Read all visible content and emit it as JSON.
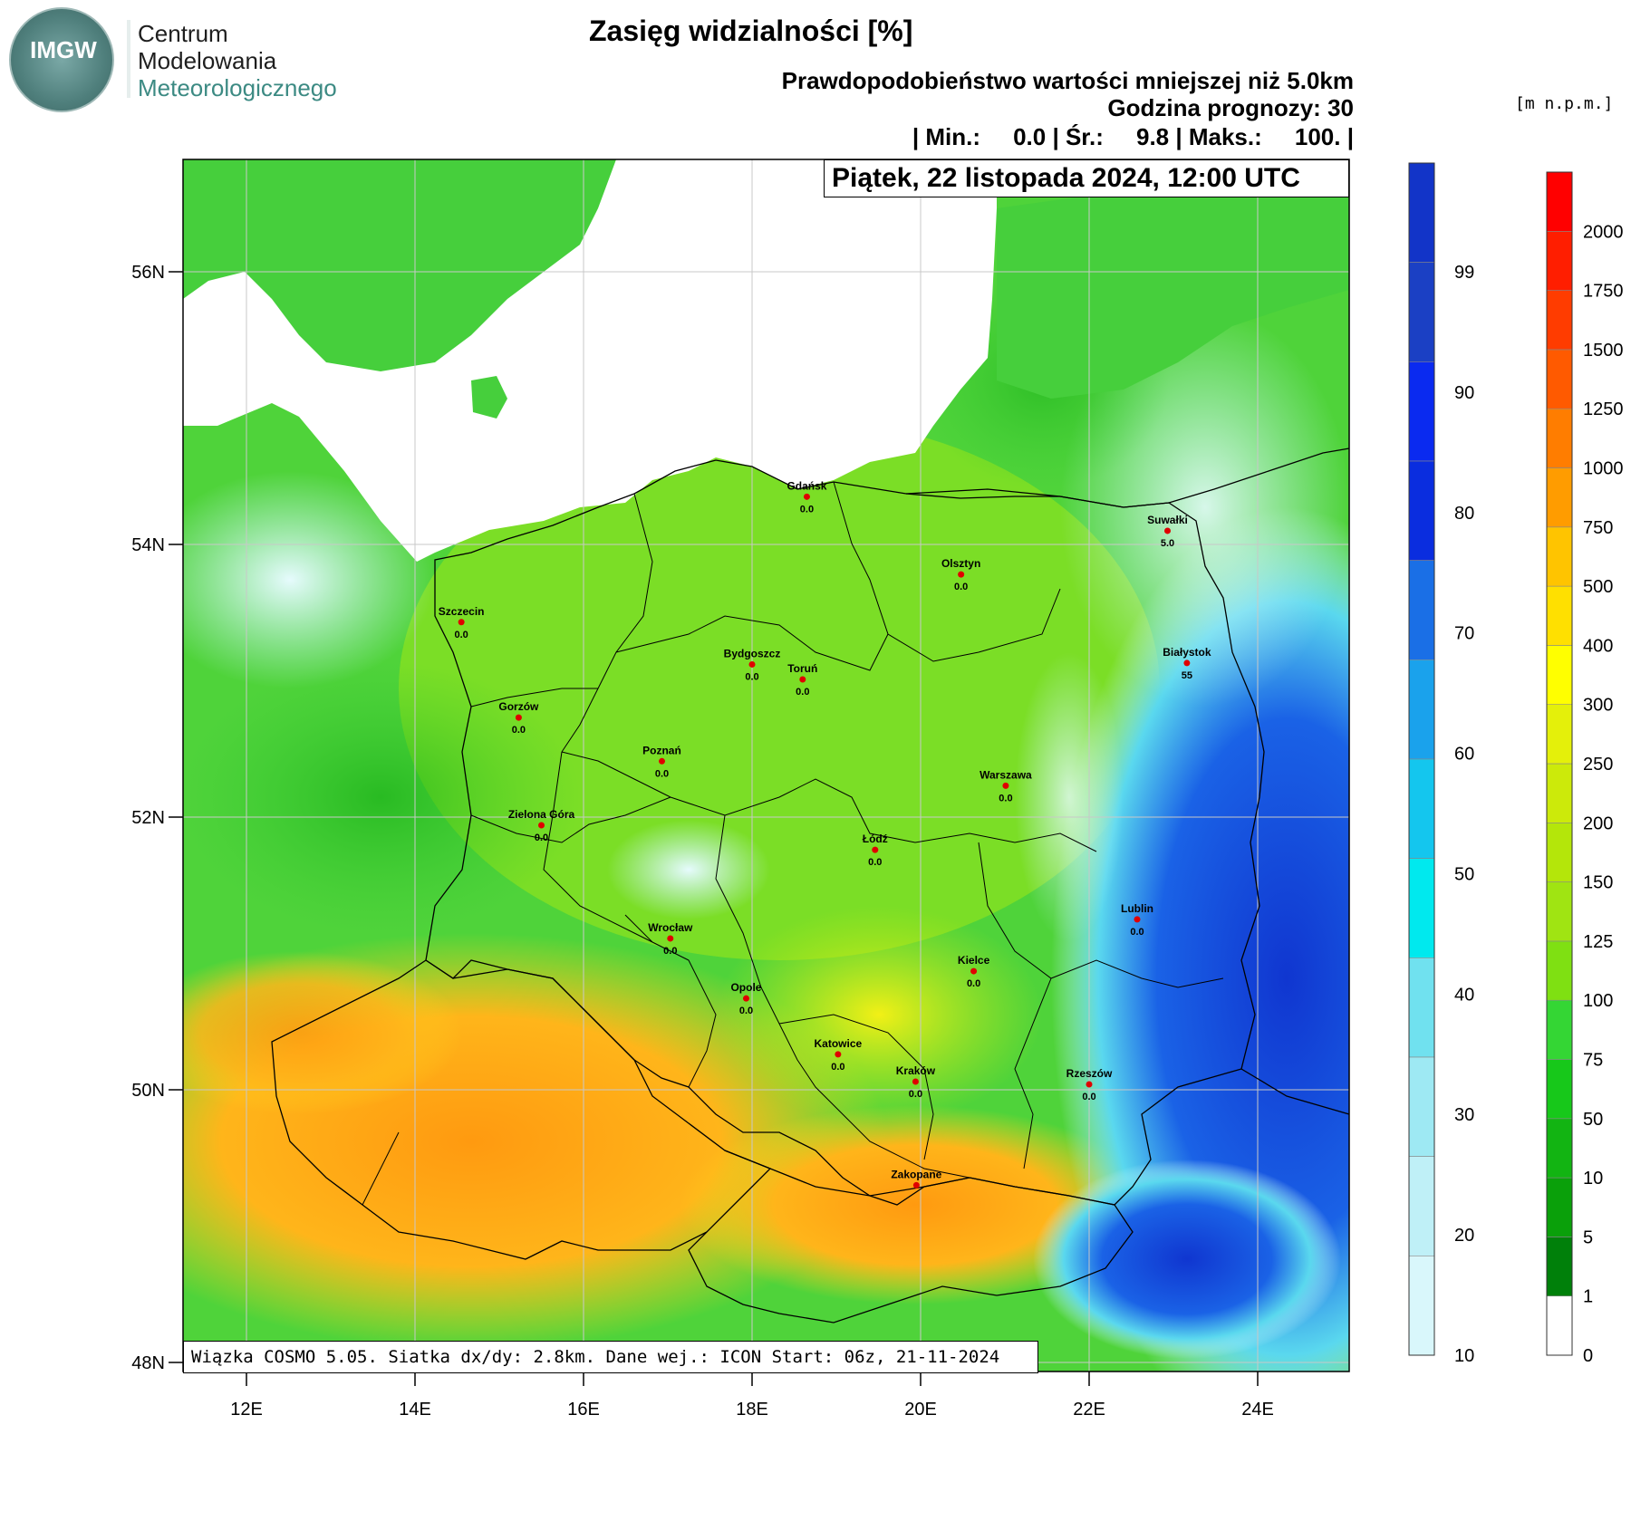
{
  "header": {
    "logo_badge": "IMGW",
    "logo_lines": [
      "Centrum",
      "Modelowania",
      "Meteorologicznego"
    ],
    "title": "Zasięg widzialności [%]",
    "subtitle1": "Prawdopodobieństwo wartości mniejszej niż 5.0km",
    "subtitle2": "Godzina prognozy: 30",
    "subtitle3": "| Min.:     0.0 | Śr.:     9.8 | Maks.:     100. |",
    "date": "Piątek, 22 listopada 2024, 12:00 UTC",
    "units": "[m n.p.m.]"
  },
  "footer": {
    "text": "Wiązka COSMO 5.05. Siatka dx/dy: 2.8km. Dane wej.: ICON Start: 06z, 21-11-2024"
  },
  "map": {
    "lat_labels": [
      "56N",
      "54N",
      "52N",
      "50N",
      "48N"
    ],
    "lon_labels": [
      "12E",
      "14E",
      "16E",
      "18E",
      "20E",
      "22E",
      "24E"
    ],
    "cities": [
      {
        "name": "Gdańsk",
        "value": "0.0",
        "lon": 18.65,
        "lat": 54.35
      },
      {
        "name": "Suwałki",
        "value": "5.0",
        "lon": 22.93,
        "lat": 54.1
      },
      {
        "name": "Olsztyn",
        "value": "0.0",
        "lon": 20.48,
        "lat": 53.78
      },
      {
        "name": "Szczecin",
        "value": "0.0",
        "lon": 14.55,
        "lat": 53.43
      },
      {
        "name": "Bydgoszcz",
        "value": "0.0",
        "lon": 18.0,
        "lat": 53.12
      },
      {
        "name": "Toruń",
        "value": "0.0",
        "lon": 18.6,
        "lat": 53.01
      },
      {
        "name": "Białystok",
        "value": "55",
        "lon": 23.16,
        "lat": 53.13
      },
      {
        "name": "Gorzów",
        "value": "0.0",
        "lon": 15.23,
        "lat": 52.73
      },
      {
        "name": "Poznań",
        "value": "0.0",
        "lon": 16.93,
        "lat": 52.41
      },
      {
        "name": "Warszawa",
        "value": "0.0",
        "lon": 21.01,
        "lat": 52.23
      },
      {
        "name": "Zielona Góra",
        "value": "0.0",
        "lon": 15.5,
        "lat": 51.94
      },
      {
        "name": "Łódź",
        "value": "0.0",
        "lon": 19.46,
        "lat": 51.76
      },
      {
        "name": "Lublin",
        "value": "0.0",
        "lon": 22.57,
        "lat": 51.25
      },
      {
        "name": "Wrocław",
        "value": "0.0",
        "lon": 17.03,
        "lat": 51.11
      },
      {
        "name": "Kielce",
        "value": "0.0",
        "lon": 20.63,
        "lat": 50.87
      },
      {
        "name": "Opole",
        "value": "0.0",
        "lon": 17.93,
        "lat": 50.67
      },
      {
        "name": "Katowice",
        "value": "0.0",
        "lon": 19.02,
        "lat": 50.26
      },
      {
        "name": "Kraków",
        "value": "0.0",
        "lon": 19.94,
        "lat": 50.06
      },
      {
        "name": "Rzeszów",
        "value": "0.0",
        "lon": 22.0,
        "lat": 50.04
      },
      {
        "name": "Zakopane",
        "value": "",
        "lon": 19.95,
        "lat": 49.3
      }
    ]
  },
  "legend_prob": {
    "labels": [
      "10",
      "20",
      "30",
      "40",
      "50",
      "60",
      "70",
      "80",
      "90",
      "99"
    ],
    "colors": [
      "#d9f7fb",
      "#bff0f7",
      "#9ee9f3",
      "#70e1ef",
      "#00e9ee",
      "#14c6ee",
      "#1aa2ec",
      "#1a6fe6",
      "#0a2ddf",
      "#0a2af0",
      "#1b40c4",
      "#1234c8"
    ]
  },
  "legend_elev": {
    "labels": [
      "0",
      "1",
      "5",
      "10",
      "50",
      "75",
      "100",
      "125",
      "150",
      "200",
      "250",
      "300",
      "400",
      "500",
      "750",
      "1000",
      "1250",
      "1500",
      "1750",
      "2000"
    ],
    "colors": [
      "#ffffff",
      "#00800a",
      "#0aa00a",
      "#12b412",
      "#17c81a",
      "#34d634",
      "#7fe012",
      "#a0e412",
      "#b4e60a",
      "#ccea0a",
      "#e4f00a",
      "#ffff00",
      "#ffe000",
      "#ffc400",
      "#ff9c00",
      "#ff7d00",
      "#ff5a00",
      "#ff3c00",
      "#ff1e00",
      "#ff0000"
    ]
  }
}
